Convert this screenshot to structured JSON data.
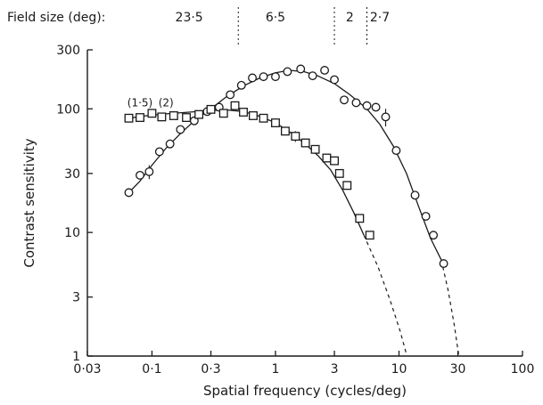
{
  "chart_data": {
    "type": "scatter",
    "title": "",
    "xlabel": "Spatial frequency (cycles/deg)",
    "ylabel": "Contrast sensitivity",
    "x_scale": "log",
    "y_scale": "log",
    "xlim": [
      0.03,
      100
    ],
    "ylim": [
      1,
      300
    ],
    "grid": false,
    "x_ticks": [
      {
        "value": 0.03,
        "label": "0·03"
      },
      {
        "value": 0.1,
        "label": "0·1"
      },
      {
        "value": 0.3,
        "label": "0·3"
      },
      {
        "value": 1,
        "label": "1"
      },
      {
        "value": 3,
        "label": "3"
      },
      {
        "value": 10,
        "label": "10"
      },
      {
        "value": 30,
        "label": "30"
      },
      {
        "value": 100,
        "label": "100"
      }
    ],
    "y_ticks": [
      {
        "value": 1,
        "label": "1"
      },
      {
        "value": 3,
        "label": "3"
      },
      {
        "value": 10,
        "label": "10"
      },
      {
        "value": 30,
        "label": "30"
      },
      {
        "value": 100,
        "label": "100"
      },
      {
        "value": 300,
        "label": "300"
      }
    ],
    "field_size": {
      "label": "Field size (deg):",
      "segments": [
        {
          "text": "23·5",
          "x": 0.2
        },
        {
          "text": "6·5",
          "x": 1.0
        },
        {
          "text": "2",
          "x": 4.0
        },
        {
          "text": "2·7",
          "x": 7.0
        }
      ],
      "dividers": [
        0.5,
        3.0,
        5.5
      ]
    },
    "annotations": [
      {
        "text": "(1·5)",
        "x": 0.08,
        "y": 105
      },
      {
        "text": "(2)",
        "x": 0.13,
        "y": 105
      }
    ],
    "series": [
      {
        "marker": "circle",
        "points": [
          {
            "x": 0.065,
            "y": 21
          },
          {
            "x": 0.08,
            "y": 29
          },
          {
            "x": 0.095,
            "y": 31,
            "err": 4
          },
          {
            "x": 0.115,
            "y": 45
          },
          {
            "x": 0.14,
            "y": 52
          },
          {
            "x": 0.17,
            "y": 68
          },
          {
            "x": 0.22,
            "y": 80
          },
          {
            "x": 0.28,
            "y": 95
          },
          {
            "x": 0.35,
            "y": 103
          },
          {
            "x": 0.43,
            "y": 130
          },
          {
            "x": 0.53,
            "y": 155
          },
          {
            "x": 0.65,
            "y": 178
          },
          {
            "x": 0.8,
            "y": 182
          },
          {
            "x": 1.0,
            "y": 182
          },
          {
            "x": 1.25,
            "y": 200
          },
          {
            "x": 1.6,
            "y": 210
          },
          {
            "x": 2.0,
            "y": 185
          },
          {
            "x": 2.5,
            "y": 205
          },
          {
            "x": 3.0,
            "y": 172
          },
          {
            "x": 3.6,
            "y": 118
          },
          {
            "x": 4.5,
            "y": 112
          },
          {
            "x": 5.5,
            "y": 106
          },
          {
            "x": 6.5,
            "y": 103
          },
          {
            "x": 7.8,
            "y": 86,
            "err": 14
          },
          {
            "x": 9.5,
            "y": 46
          },
          {
            "x": 13.5,
            "y": 20
          },
          {
            "x": 16.5,
            "y": 13.5
          },
          {
            "x": 19,
            "y": 9.5
          },
          {
            "x": 23,
            "y": 5.6
          }
        ],
        "curve": [
          [
            0.065,
            21
          ],
          [
            0.08,
            26
          ],
          [
            0.1,
            35
          ],
          [
            0.13,
            48
          ],
          [
            0.17,
            63
          ],
          [
            0.22,
            80
          ],
          [
            0.3,
            100
          ],
          [
            0.4,
            125
          ],
          [
            0.55,
            153
          ],
          [
            0.75,
            178
          ],
          [
            1.0,
            196
          ],
          [
            1.3,
            205
          ],
          [
            1.7,
            200
          ],
          [
            2.2,
            185
          ],
          [
            3.0,
            160
          ],
          [
            4.0,
            130
          ],
          [
            5.5,
            100
          ],
          [
            7.0,
            75
          ],
          [
            9.0,
            50
          ],
          [
            11.5,
            30
          ],
          [
            14.5,
            16
          ],
          [
            18.0,
            9
          ],
          [
            22.0,
            6
          ]
        ],
        "extrapolation": [
          [
            22.0,
            6
          ],
          [
            25.0,
            3.4
          ],
          [
            28.0,
            1.8
          ],
          [
            30.5,
            1.0
          ]
        ]
      },
      {
        "marker": "square",
        "points": [
          {
            "x": 0.065,
            "y": 84
          },
          {
            "x": 0.08,
            "y": 85
          },
          {
            "x": 0.1,
            "y": 92
          },
          {
            "x": 0.12,
            "y": 86
          },
          {
            "x": 0.15,
            "y": 88
          },
          {
            "x": 0.19,
            "y": 85
          },
          {
            "x": 0.24,
            "y": 90
          },
          {
            "x": 0.3,
            "y": 99
          },
          {
            "x": 0.38,
            "y": 92
          },
          {
            "x": 0.47,
            "y": 106
          },
          {
            "x": 0.55,
            "y": 94
          },
          {
            "x": 0.66,
            "y": 88
          },
          {
            "x": 0.8,
            "y": 84
          },
          {
            "x": 1.0,
            "y": 77
          },
          {
            "x": 1.2,
            "y": 66
          },
          {
            "x": 1.45,
            "y": 60,
            "err": 6
          },
          {
            "x": 1.75,
            "y": 53
          },
          {
            "x": 2.1,
            "y": 47
          },
          {
            "x": 2.6,
            "y": 40
          },
          {
            "x": 3.0,
            "y": 38
          },
          {
            "x": 3.3,
            "y": 30
          },
          {
            "x": 3.8,
            "y": 24
          },
          {
            "x": 4.8,
            "y": 13
          },
          {
            "x": 5.8,
            "y": 9.5
          }
        ],
        "curve": [
          [
            0.065,
            84
          ],
          [
            0.09,
            88
          ],
          [
            0.13,
            91
          ],
          [
            0.2,
            94
          ],
          [
            0.3,
            97
          ],
          [
            0.4,
            98
          ],
          [
            0.55,
            95
          ],
          [
            0.75,
            87
          ],
          [
            1.0,
            77
          ],
          [
            1.3,
            65
          ],
          [
            1.7,
            53
          ],
          [
            2.2,
            42
          ],
          [
            2.8,
            32
          ],
          [
            3.5,
            22
          ],
          [
            4.3,
            14.5
          ],
          [
            5.2,
            9.5
          ]
        ],
        "extrapolation": [
          [
            5.2,
            9.5
          ],
          [
            6.8,
            5.2
          ],
          [
            8.5,
            2.8
          ],
          [
            10.2,
            1.6
          ],
          [
            11.6,
            1.0
          ]
        ]
      }
    ]
  }
}
